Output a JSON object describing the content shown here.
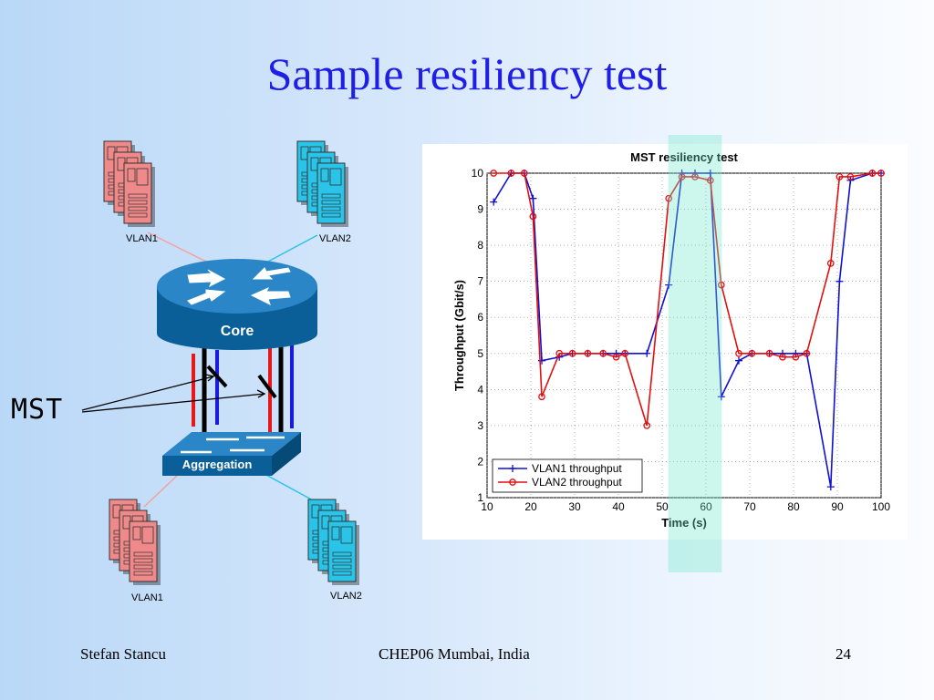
{
  "slide": {
    "title": "Sample resiliency test",
    "footer_left": "Stefan Stancu",
    "footer_center": "CHEP06 Mumbai, India",
    "footer_right": "24"
  },
  "diagram": {
    "mst_label": "MST",
    "core_label": "Core",
    "aggregation_label": "Aggregation",
    "server_groups": [
      {
        "label": "VLAN1",
        "color": "#f08a8a"
      },
      {
        "label": "VLAN2",
        "color": "#29c4e8"
      },
      {
        "label": "VLAN1",
        "color": "#f08a8a"
      },
      {
        "label": "VLAN2",
        "color": "#29c4e8"
      }
    ],
    "colors": {
      "vlan1_link": "#e81818",
      "vlan2_link": "#1a1ae0",
      "trunk": "#000000",
      "device_blue": "#0a6aa8"
    }
  },
  "chart_data": {
    "type": "line",
    "title": "MST resiliency test",
    "xlabel": "Time (s)",
    "ylabel": "Throughput (Gbit/s)",
    "xlim": [
      10,
      100
    ],
    "ylim": [
      1,
      10
    ],
    "xticks": [
      10,
      20,
      30,
      40,
      50,
      60,
      70,
      80,
      90,
      100
    ],
    "yticks": [
      1,
      2,
      3,
      4,
      5,
      6,
      7,
      8,
      9,
      10
    ],
    "grid": true,
    "legend_position": "bottom-left",
    "highlight_band": [
      52,
      63
    ],
    "series": [
      {
        "name": "VLAN1 throughput",
        "color": "#1010d0",
        "marker": "plus",
        "x": [
          11.5,
          15.5,
          18.5,
          20.5,
          22.5,
          26.5,
          29.5,
          33,
          36.5,
          39.5,
          41.5,
          46.5,
          51.5,
          54.5,
          57.5,
          61,
          63.5,
          67.5,
          70.5,
          74.5,
          77.5,
          80.5,
          83,
          88.5,
          90.5,
          93,
          98,
          100
        ],
        "values": [
          9.2,
          10.0,
          10.0,
          9.3,
          4.8,
          4.9,
          5.0,
          5.0,
          5.0,
          5.0,
          5.0,
          5.0,
          6.9,
          10.0,
          10.0,
          10.0,
          3.8,
          4.8,
          5.0,
          5.0,
          5.0,
          5.0,
          5.0,
          1.3,
          7.0,
          9.8,
          10.0,
          10.0
        ]
      },
      {
        "name": "VLAN2 throughput",
        "color": "#e01010",
        "marker": "circle",
        "x": [
          11.5,
          15.5,
          18.5,
          20.5,
          22.5,
          26.5,
          29.5,
          33,
          36.5,
          39.5,
          41.5,
          46.5,
          51.5,
          54.5,
          57.5,
          61,
          63.5,
          67.5,
          70.5,
          74.5,
          77.5,
          80.5,
          83,
          88.5,
          90.5,
          93,
          98,
          100
        ],
        "values": [
          10.0,
          10.0,
          10.0,
          8.8,
          3.8,
          5.0,
          5.0,
          5.0,
          5.0,
          4.9,
          5.0,
          3.0,
          9.3,
          9.9,
          9.9,
          9.8,
          6.9,
          5.0,
          5.0,
          5.0,
          4.9,
          4.9,
          5.0,
          7.5,
          9.9,
          9.9,
          10.0,
          10.0
        ]
      }
    ]
  }
}
